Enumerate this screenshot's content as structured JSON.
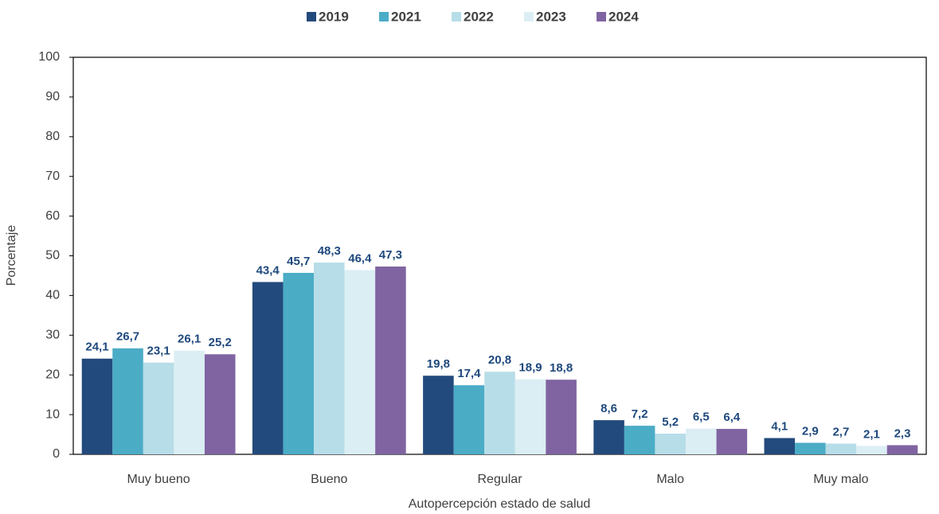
{
  "chart_data": {
    "type": "bar",
    "x_label": "Autopercepción estado de salud",
    "y_label": "Porcentaje",
    "categories": [
      "Muy bueno",
      "Bueno",
      "Regular",
      "Malo",
      "Muy malo"
    ],
    "series": [
      {
        "name": "2019",
        "color": "#234a7c",
        "values": [
          24.1,
          43.4,
          19.8,
          8.6,
          4.1
        ],
        "value_labels": [
          "24,1",
          "43,4",
          "19,8",
          "8,6",
          "4,1"
        ]
      },
      {
        "name": "2021",
        "color": "#4bacc6",
        "values": [
          26.7,
          45.7,
          17.4,
          7.2,
          2.9
        ],
        "value_labels": [
          "26,7",
          "45,7",
          "17,4",
          "7,2",
          "2,9"
        ]
      },
      {
        "name": "2022",
        "color": "#b7dde8",
        "values": [
          23.1,
          48.3,
          20.8,
          5.2,
          2.7
        ],
        "value_labels": [
          "23,1",
          "48,3",
          "20,8",
          "5,2",
          "2,7"
        ]
      },
      {
        "name": "2023",
        "color": "#dbeef4",
        "values": [
          26.1,
          46.4,
          18.9,
          6.5,
          2.1
        ],
        "value_labels": [
          "26,1",
          "46,4",
          "18,9",
          "6,5",
          "2,1"
        ]
      },
      {
        "name": "2024",
        "color": "#8064a2",
        "values": [
          25.2,
          47.3,
          18.8,
          6.4,
          2.3
        ],
        "value_labels": [
          "25,2",
          "47,3",
          "18,8",
          "6,4",
          "2,3"
        ]
      }
    ],
    "ylim": [
      0,
      100
    ],
    "yticks": [
      0,
      10,
      20,
      30,
      40,
      50,
      60,
      70,
      80,
      90,
      100
    ],
    "legend": "top"
  }
}
